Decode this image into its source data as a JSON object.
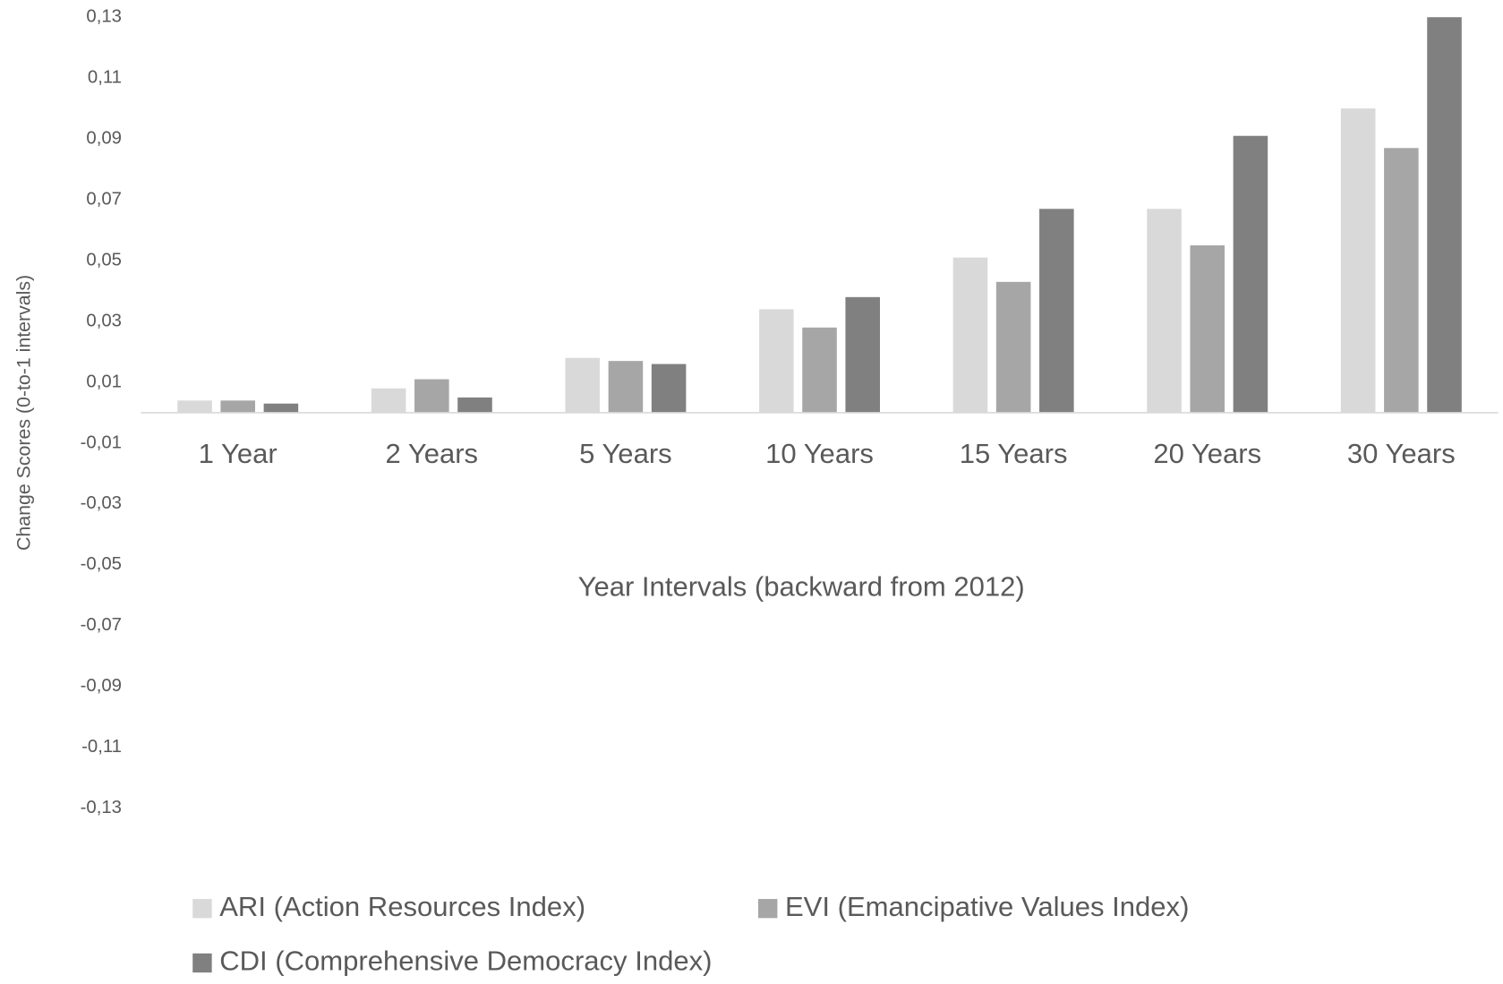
{
  "chart_data": {
    "type": "bar",
    "y_label": "Change Scores (0-to-1 intervals)",
    "x_label": "Year Intervals (backward from 2012)",
    "categories": [
      "1 Year",
      "2 Years",
      "5 Years",
      "10 Years",
      "15 Years",
      "20 Years",
      "30 Years"
    ],
    "series": [
      {
        "name": "ARI (Action Resources Index)",
        "color": "#d9d9d9",
        "values": [
          0.004,
          0.008,
          0.018,
          0.034,
          0.051,
          0.067,
          0.1
        ]
      },
      {
        "name": "EVI (Emancipative Values Index)",
        "color": "#a6a6a6",
        "values": [
          0.004,
          0.011,
          0.017,
          0.028,
          0.043,
          0.055,
          0.087
        ]
      },
      {
        "name": "CDI (Comprehensive Democracy Index)",
        "color": "#808080",
        "values": [
          0.003,
          0.005,
          0.016,
          0.038,
          0.067,
          0.091,
          0.13
        ]
      }
    ],
    "ylim": [
      -0.13,
      0.13
    ],
    "yticks": [
      {
        "value": -0.13,
        "label": "-0,13"
      },
      {
        "value": -0.11,
        "label": "-0,11"
      },
      {
        "value": -0.09,
        "label": "-0,09"
      },
      {
        "value": -0.07,
        "label": "-0,07"
      },
      {
        "value": -0.05,
        "label": "-0,05"
      },
      {
        "value": -0.03,
        "label": "-0,03"
      },
      {
        "value": -0.01,
        "label": "-0,01"
      },
      {
        "value": 0.01,
        "label": "0,01"
      },
      {
        "value": 0.03,
        "label": "0,03"
      },
      {
        "value": 0.05,
        "label": "0,05"
      },
      {
        "value": 0.07,
        "label": "0,07"
      },
      {
        "value": 0.09,
        "label": "0,09"
      },
      {
        "value": 0.11,
        "label": "0,11"
      },
      {
        "value": 0.13,
        "label": "0,13"
      }
    ],
    "grid": false,
    "legend": "bottom"
  }
}
